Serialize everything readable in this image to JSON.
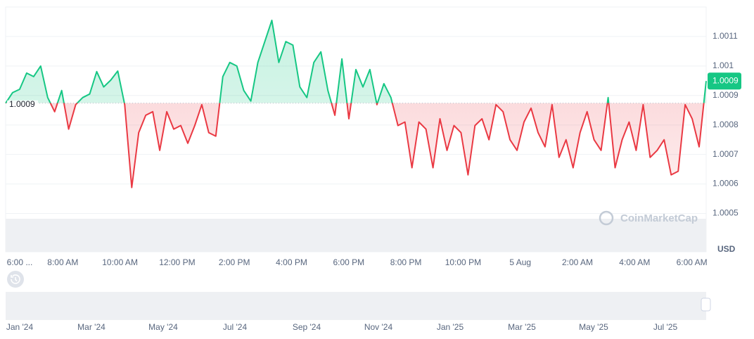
{
  "chart_data": {
    "type": "line",
    "x_labels": [
      "6:00 ...",
      "8:00 AM",
      "10:00 AM",
      "12:00 PM",
      "2:00 PM",
      "4:00 PM",
      "6:00 PM",
      "8:00 PM",
      "10:00 PM",
      "5 Aug",
      "2:00 AM",
      "4:00 AM",
      "6:00 AM"
    ],
    "values": [
      1.000874,
      1.00091,
      1.000921,
      1.000976,
      1.000964,
      1.001,
      1.000893,
      1.000845,
      1.000917,
      1.000786,
      1.000869,
      1.000893,
      1.000905,
      1.000981,
      1.000929,
      1.000952,
      1.000983,
      1.000869,
      1.000588,
      1.000774,
      1.000833,
      1.000845,
      1.000714,
      1.000845,
      1.000786,
      1.000798,
      1.000738,
      1.000798,
      1.000869,
      1.000774,
      1.000762,
      1.000964,
      1.001012,
      1.001,
      1.000917,
      1.000881,
      1.001012,
      1.001083,
      1.001155,
      1.001012,
      1.001083,
      1.001071,
      1.000929,
      1.000893,
      1.001012,
      1.001048,
      1.000917,
      1.000833,
      1.001024,
      1.000821,
      1.000988,
      1.000929,
      1.000988,
      1.000869,
      1.00094,
      1.000893,
      1.000798,
      1.00081,
      1.000655,
      1.00081,
      1.000786,
      1.000655,
      1.000821,
      1.000714,
      1.000798,
      1.000774,
      1.000631,
      1.000798,
      1.000821,
      1.00075,
      1.000869,
      1.000845,
      1.00075,
      1.000714,
      1.00081,
      1.000857,
      1.000774,
      1.000726,
      1.000869,
      1.00069,
      1.00075,
      1.000655,
      1.000774,
      1.000845,
      1.00075,
      1.000714,
      1.000893,
      1.000655,
      1.00075,
      1.00081,
      1.000714,
      1.000869,
      1.00069,
      1.000714,
      1.00075,
      1.000631,
      1.000643,
      1.000869,
      1.000821,
      1.000726,
      1.000949
    ],
    "ylim": [
      1.00037,
      1.0012
    ],
    "yticks": [
      1.0005,
      1.0006,
      1.0007,
      1.0008,
      1.0009,
      1.001,
      1.0011
    ],
    "baseline": {
      "value": 1.000874,
      "label": "1.0009"
    },
    "price_label": "1.0009",
    "currency": "USD",
    "up_color": "#16c784",
    "down_color": "#ea3943",
    "grid": true,
    "watermark": "CoinMarketCap",
    "navigator_labels": [
      "Jan '24",
      "Mar '24",
      "May '24",
      "Jul '24",
      "Sep '24",
      "Nov '24",
      "Jan '25",
      "Mar '25",
      "May '25",
      "Jul '25"
    ]
  }
}
